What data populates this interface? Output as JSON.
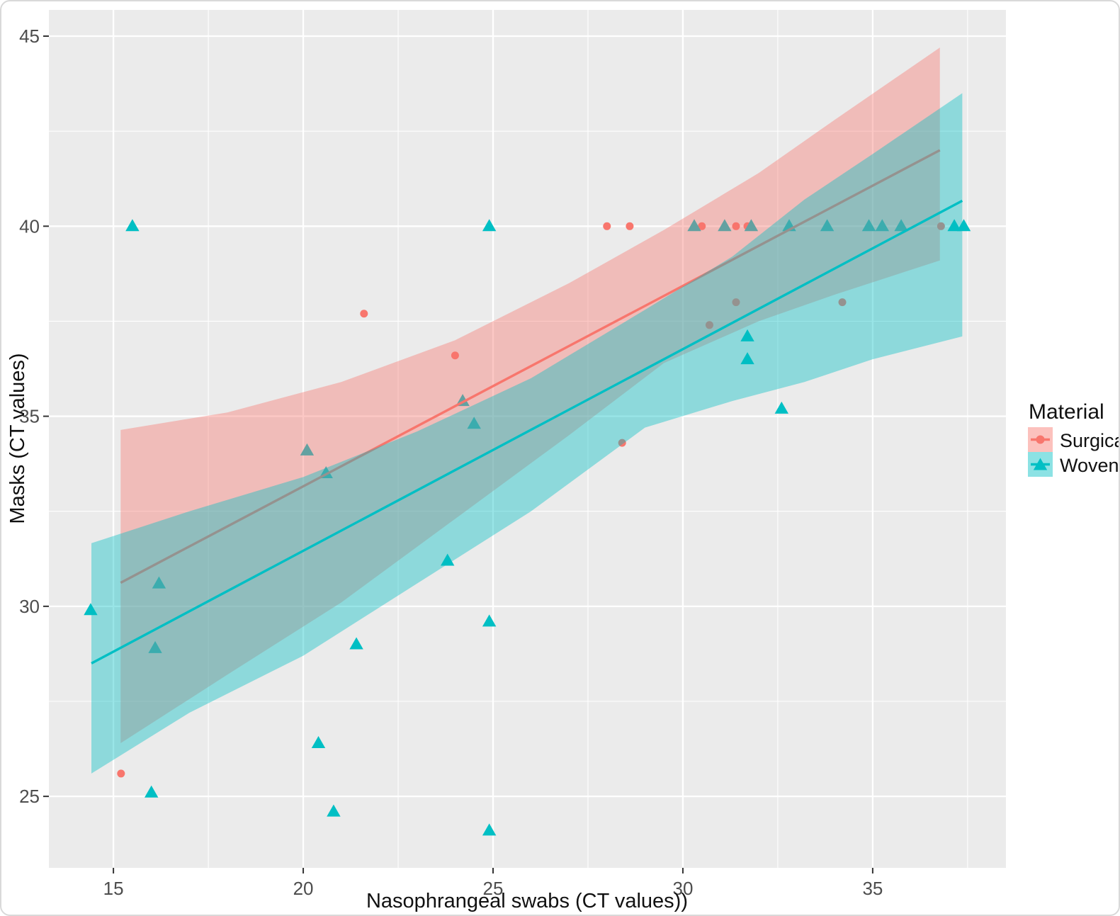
{
  "chart_data": {
    "type": "scatter",
    "title": "",
    "xlabel": "Nasophrangeal swabs (CT values))",
    "ylabel": "Masks (CT values)",
    "xlim": [
      13.3,
      38.51
    ],
    "ylim": [
      23.12,
      45.69
    ],
    "xticks": [
      15,
      20,
      25,
      30,
      35
    ],
    "yticks": [
      25,
      30,
      35,
      40,
      45
    ],
    "xticks_minor": [
      17.5,
      22.5,
      27.5,
      32.5,
      37.5
    ],
    "yticks_minor": [
      27.5,
      32.5,
      37.5,
      42.5
    ],
    "grid": true,
    "panel_background": "#EBEBEB",
    "gridline_color": "#FFFFFF",
    "tick_color": "#333333",
    "legend_position": "right",
    "legend_title": "Material",
    "style": {
      "ribbon_opacity": 0.4,
      "point_radius": 5.5,
      "triangle_half_width": 9.7,
      "triangle_up": 10,
      "triangle_down": 7,
      "line_width": 3.4,
      "legend_key_size": 35,
      "legend_key_opacity": 0.45
    },
    "series": [
      {
        "name": "Surgical",
        "color": "#F8766D",
        "marker": "circle",
        "points": [
          [
            15.2,
            25.6
          ],
          [
            21.6,
            37.7
          ],
          [
            24.0,
            36.6
          ],
          [
            28.0,
            40.0
          ],
          [
            28.4,
            34.3
          ],
          [
            28.6,
            40.0
          ],
          [
            30.5,
            40.0
          ],
          [
            30.7,
            37.4
          ],
          [
            31.4,
            38.0
          ],
          [
            31.4,
            40.0
          ],
          [
            31.7,
            40.0
          ],
          [
            34.2,
            38.0
          ],
          [
            36.8,
            40.0
          ]
        ],
        "regression_line": {
          "x": [
            15.19,
            36.77
          ],
          "y": [
            30.62,
            42.0
          ]
        },
        "ci_ribbon": {
          "x": [
            15.19,
            18.0,
            21.0,
            24.0,
            27.0,
            29.5,
            32.0,
            34.0,
            36.77
          ],
          "upper": [
            34.64,
            35.1,
            35.9,
            37.0,
            38.5,
            39.9,
            41.4,
            42.8,
            44.7
          ],
          "lower": [
            26.4,
            28.2,
            30.1,
            32.3,
            34.5,
            36.4,
            37.5,
            38.2,
            39.1
          ]
        }
      },
      {
        "name": "Woven",
        "color": "#00BFC4",
        "marker": "triangle",
        "points": [
          [
            14.4,
            29.9
          ],
          [
            15.5,
            40.0
          ],
          [
            16.0,
            25.1
          ],
          [
            16.1,
            28.9
          ],
          [
            16.2,
            30.6
          ],
          [
            20.1,
            34.1
          ],
          [
            20.4,
            26.4
          ],
          [
            20.6,
            33.5
          ],
          [
            20.8,
            24.6
          ],
          [
            21.4,
            29.0
          ],
          [
            23.8,
            31.2
          ],
          [
            24.2,
            35.4
          ],
          [
            24.5,
            34.8
          ],
          [
            24.9,
            24.1
          ],
          [
            24.9,
            29.6
          ],
          [
            24.9,
            40.0
          ],
          [
            30.3,
            40.0
          ],
          [
            31.1,
            40.0
          ],
          [
            31.7,
            36.5
          ],
          [
            31.7,
            37.1
          ],
          [
            31.8,
            40.0
          ],
          [
            32.6,
            35.2
          ],
          [
            32.8,
            40.0
          ],
          [
            33.8,
            40.0
          ],
          [
            34.9,
            40.0
          ],
          [
            35.25,
            40.0
          ],
          [
            35.75,
            40.0
          ],
          [
            37.15,
            40.0
          ],
          [
            37.4,
            40.0
          ]
        ],
        "regression_line": {
          "x": [
            14.42,
            37.36
          ],
          "y": [
            28.5,
            40.67
          ]
        },
        "ci_ribbon": {
          "x": [
            14.42,
            17.0,
            20.0,
            23.0,
            26.0,
            29.0,
            31.3,
            33.2,
            35.0,
            37.36
          ],
          "upper": [
            31.66,
            32.5,
            33.4,
            34.6,
            36.0,
            37.8,
            39.2,
            40.7,
            41.9,
            43.5
          ],
          "lower": [
            25.6,
            27.2,
            28.7,
            30.6,
            32.5,
            34.7,
            35.4,
            35.9,
            36.5,
            37.1
          ]
        }
      }
    ]
  }
}
